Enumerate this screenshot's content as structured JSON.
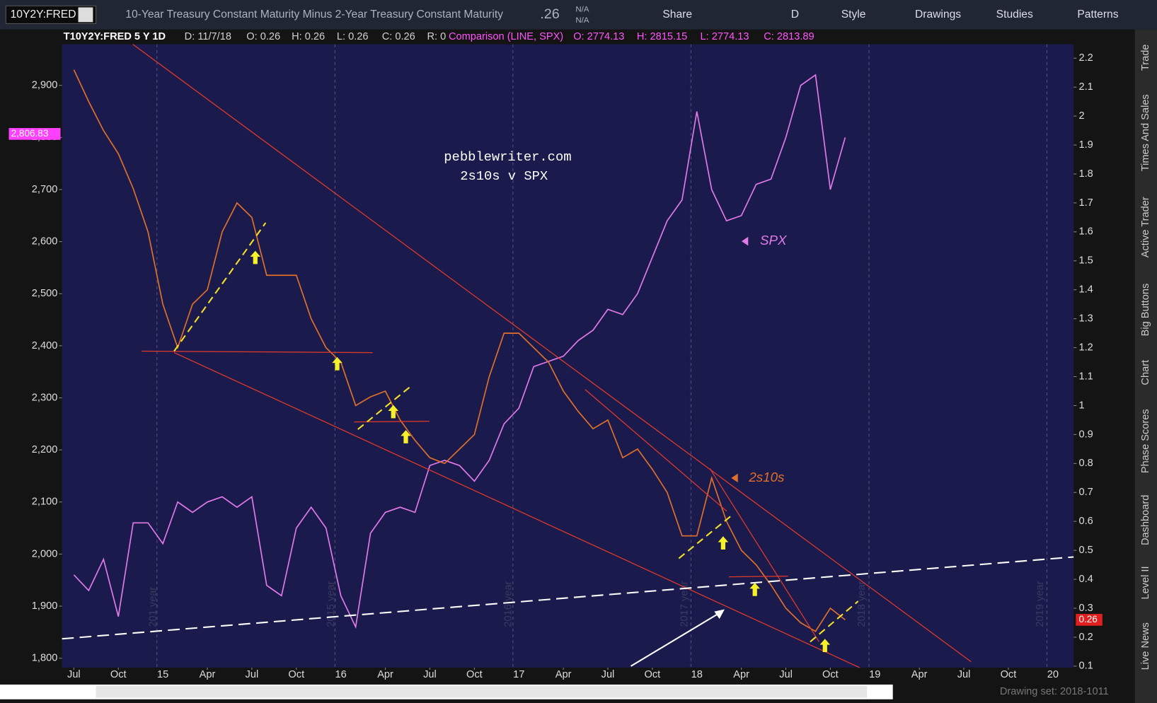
{
  "toolbar": {
    "symbol": "10Y2Y:FRED",
    "description": "10-Year Treasury Constant Maturity Minus 2-Year Treasury Constant Maturity",
    "last": ".26",
    "change": "N/A",
    "change_pct": "N/A",
    "buttons": [
      "Share",
      "D",
      "Style",
      "Drawings",
      "Studies",
      "Patterns"
    ]
  },
  "header": {
    "study": "T10Y2Y:FRED 5 Y 1D",
    "fields": [
      "D: 11/7/18",
      "O: 0.26",
      "H: 0.26",
      "L: 0.26",
      "C: 0.26",
      "R: 0"
    ],
    "comparison": "Comparison (LINE, SPX)",
    "comparison_fields": [
      "O: 2774.13",
      "H: 2815.15",
      "L: 2774.13",
      "C: 2813.89"
    ]
  },
  "chart_data": {
    "type": "line",
    "title": "pebblewriter.com",
    "subtitle": "2s10s v SPX",
    "x": [
      0,
      1,
      2,
      3,
      4,
      5,
      6,
      7,
      8,
      9,
      10,
      11,
      12,
      13,
      14,
      15,
      16,
      17,
      18,
      19,
      20,
      21,
      22,
      23,
      24,
      25,
      26,
      27,
      28,
      29,
      30,
      31,
      32,
      33,
      34,
      35,
      36,
      37,
      38,
      39,
      40,
      41,
      42,
      43,
      44,
      45,
      46,
      47,
      48,
      49,
      50,
      51,
      52
    ],
    "xlim": [
      -0.8,
      67.4
    ],
    "xticks": [
      {
        "value": 0,
        "label": "Jul"
      },
      {
        "value": 3,
        "label": "Oct"
      },
      {
        "value": 6,
        "label": "15"
      },
      {
        "value": 9,
        "label": "Apr"
      },
      {
        "value": 12,
        "label": "Jul"
      },
      {
        "value": 15,
        "label": "Oct"
      },
      {
        "value": 18,
        "label": "16"
      },
      {
        "value": 21,
        "label": "Apr"
      },
      {
        "value": 24,
        "label": "Jul"
      },
      {
        "value": 27,
        "label": "Oct"
      },
      {
        "value": 30,
        "label": "17"
      },
      {
        "value": 33,
        "label": "Apr"
      },
      {
        "value": 36,
        "label": "Jul"
      },
      {
        "value": 39,
        "label": "Oct"
      },
      {
        "value": 42,
        "label": "18"
      },
      {
        "value": 45,
        "label": "Apr"
      },
      {
        "value": 48,
        "label": "Jul"
      },
      {
        "value": 51,
        "label": "Oct"
      },
      {
        "value": 54,
        "label": "19"
      },
      {
        "value": 57,
        "label": "Apr"
      },
      {
        "value": 60,
        "label": "Jul"
      },
      {
        "value": 63,
        "label": "Oct"
      },
      {
        "value": 66,
        "label": "20"
      }
    ],
    "ylim": [
      1782,
      2979
    ],
    "yticks": [
      {
        "value": 2900,
        "label": "2,900"
      },
      {
        "value": 2800,
        "label": "2,800"
      },
      {
        "value": 2700,
        "label": "2,700"
      },
      {
        "value": 2600,
        "label": "2,600"
      },
      {
        "value": 2500,
        "label": "2,500"
      },
      {
        "value": 2400,
        "label": "2,400"
      },
      {
        "value": 2300,
        "label": "2,300"
      },
      {
        "value": 2200,
        "label": "2,200"
      },
      {
        "value": 2100,
        "label": "2,100"
      },
      {
        "value": 2000,
        "label": "2,000"
      },
      {
        "value": 1900,
        "label": "1,900"
      },
      {
        "value": 1800,
        "label": "1,800"
      }
    ],
    "y2lim": [
      0.095,
      2.248
    ],
    "y2ticks": [
      2.2,
      2.1,
      2,
      1.9,
      1.8,
      1.7,
      1.6,
      1.5,
      1.4,
      1.3,
      1.2,
      1.1,
      1,
      0.9,
      0.8,
      0.7,
      0.6,
      0.5,
      0.4,
      0.3,
      0.2,
      0.1
    ],
    "series": [
      {
        "name": "SPX",
        "color": "#e27ae8",
        "values": [
          1960,
          1930,
          1990,
          1880,
          2060,
          2060,
          2020,
          2100,
          2080,
          2100,
          2110,
          2090,
          2110,
          1940,
          1920,
          2050,
          2090,
          2050,
          1920,
          1860,
          2040,
          2080,
          2090,
          2080,
          2170,
          2180,
          2170,
          2140,
          2180,
          2250,
          2280,
          2360,
          2370,
          2380,
          2410,
          2430,
          2470,
          2460,
          2500,
          2570,
          2640,
          2680,
          2850,
          2700,
          2640,
          2650,
          2710,
          2720,
          2800,
          2900,
          2920,
          2700,
          2800
        ]
      },
      {
        "name": "2s10s",
        "color": "#e0702a",
        "axis": "y2",
        "values": [
          2.16,
          2.05,
          1.95,
          1.87,
          1.75,
          1.6,
          1.35,
          1.2,
          1.35,
          1.4,
          1.6,
          1.7,
          1.65,
          1.45,
          1.45,
          1.45,
          1.3,
          1.2,
          1.15,
          1.0,
          1.03,
          1.05,
          0.95,
          0.88,
          0.82,
          0.8,
          0.85,
          0.9,
          1.1,
          1.25,
          1.25,
          1.2,
          1.15,
          1.05,
          0.98,
          0.92,
          0.95,
          0.82,
          0.85,
          0.78,
          0.7,
          0.55,
          0.55,
          0.75,
          0.6,
          0.5,
          0.45,
          0.38,
          0.3,
          0.25,
          0.22,
          0.3,
          0.26
        ]
      }
    ],
    "grid": true,
    "last_labels": [
      {
        "value": 2806.83,
        "label": "2,806.83"
      },
      {
        "value": 0.26,
        "label": "0.26",
        "axis": "y2"
      }
    ]
  },
  "watermarks": [
    "201 year",
    "2015 year",
    "2016 year",
    "2017 year",
    "2018 year",
    "2019 year"
  ],
  "sidebar": [
    "Trade",
    "Times And Sales",
    "Active Trader",
    "Big Buttons",
    "Chart",
    "Phase Scores",
    "Dashboard",
    "Level II",
    "Live News"
  ],
  "footer": {
    "drawing_set": "Drawing set: 2018-1011"
  }
}
